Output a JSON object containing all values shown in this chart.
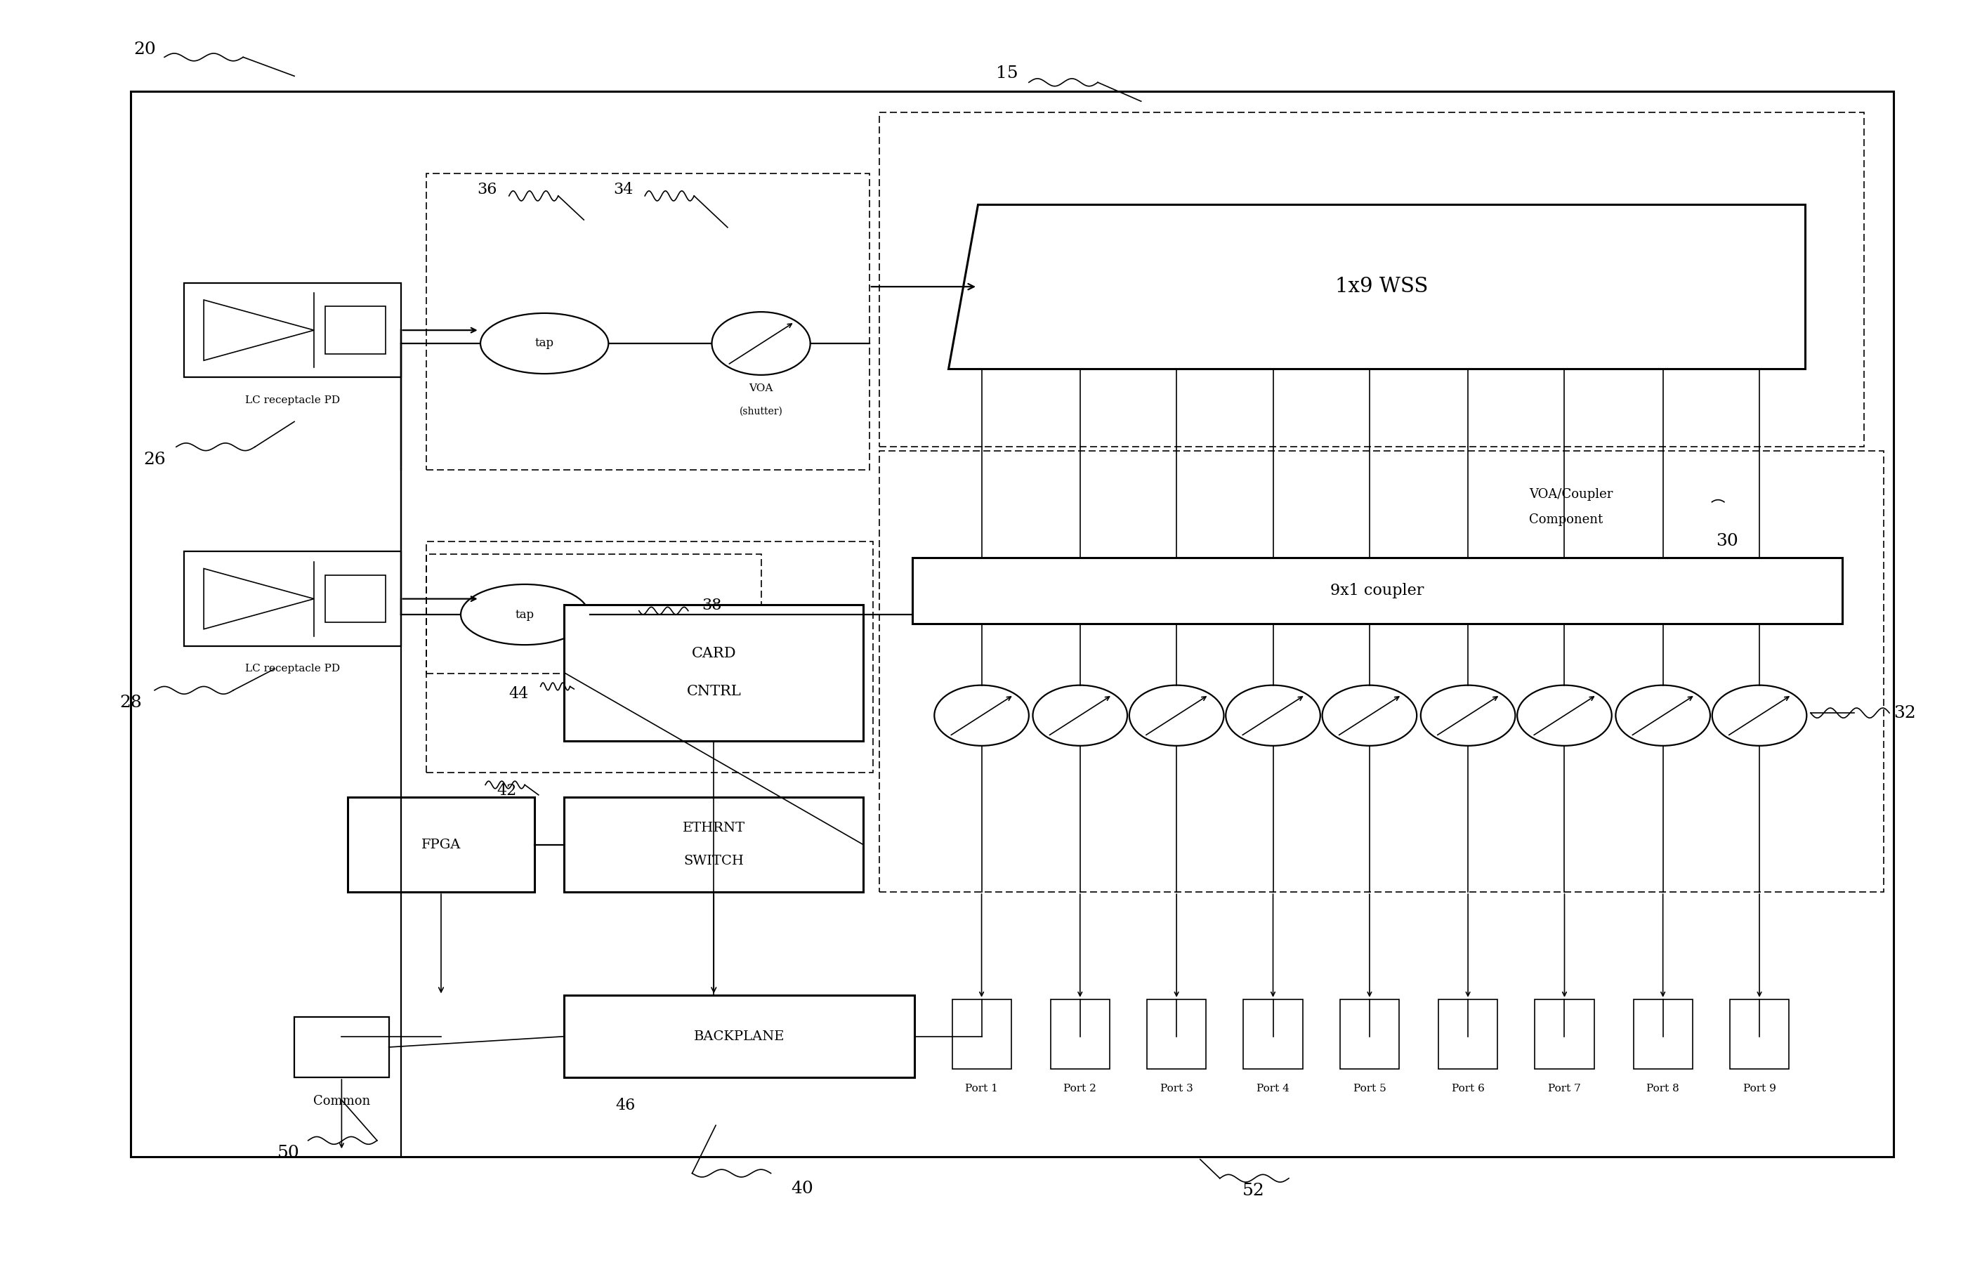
{
  "bg_color": "#ffffff",
  "line_color": "#000000",
  "fig_width": 28.12,
  "fig_height": 18.04,
  "ports": [
    "Port 1",
    "Port 2",
    "Port 3",
    "Port 4",
    "Port 5",
    "Port 6",
    "Port 7",
    "Port 8",
    "Port 9"
  ]
}
